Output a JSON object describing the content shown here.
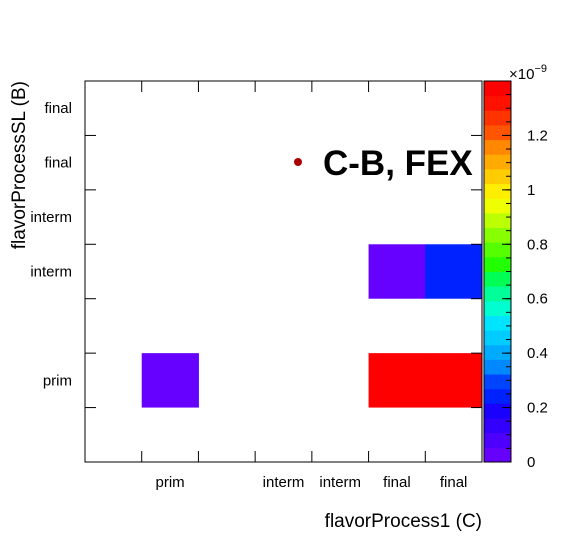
{
  "chart_data": {
    "type": "heatmap",
    "xlabel": "flavorProcess1 (C)",
    "ylabel": "flavorProcessSL (B)",
    "x_categories": [
      "",
      "prim",
      "",
      "interm",
      "interm",
      "final",
      "final"
    ],
    "y_categories": [
      "",
      "prim",
      "",
      "interm",
      "interm",
      "final",
      "final"
    ],
    "cells": [
      {
        "x": 1,
        "y": 1,
        "value": 1e-10,
        "color": "#6600ff"
      },
      {
        "x": 5,
        "y": 1,
        "value": 1.36e-09,
        "color": "#ff0000"
      },
      {
        "x": 6,
        "y": 1,
        "value": 1.36e-09,
        "color": "#ff0000"
      },
      {
        "x": 5,
        "y": 3,
        "value": 1e-10,
        "color": "#6600ff"
      },
      {
        "x": 6,
        "y": 3,
        "value": 2e-10,
        "color": "#0022ff"
      }
    ],
    "zrange": [
      0,
      1.4e-09
    ],
    "colorbar": {
      "exponent_label": "×10",
      "exponent_power": "−9",
      "ticks": [
        "0",
        "0.2",
        "0.4",
        "0.6",
        "0.8",
        "1",
        "1.2"
      ],
      "tick_values": [
        0,
        0.2,
        0.4,
        0.6,
        0.8,
        1.0,
        1.2
      ],
      "max": 1.4,
      "colors": [
        "#6600ff",
        "#4d00ff",
        "#3300ff",
        "#1a00ff",
        "#0022ff",
        "#0044ff",
        "#0088ff",
        "#00aaff",
        "#00ccff",
        "#00e5ff",
        "#00ffd0",
        "#00ff99",
        "#00ff55",
        "#22ff00",
        "#55ff00",
        "#88ff00",
        "#bbff00",
        "#eeff00",
        "#ffee00",
        "#ffcc00",
        "#ffaa00",
        "#ff8800",
        "#ff5500",
        "#ff3300",
        "#ff1100",
        "#ff0000"
      ]
    },
    "legend": {
      "label": "C-B, FEX",
      "marker_color": "#aa0000",
      "placement": "top-right"
    },
    "grid": false
  }
}
